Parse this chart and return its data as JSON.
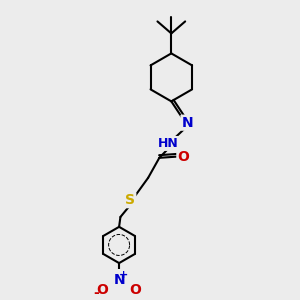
{
  "bg_color": "#ececec",
  "bond_color": "#000000",
  "bond_width": 1.5,
  "atom_colors": {
    "C": "#000000",
    "N": "#0000cc",
    "O": "#cc0000",
    "S": "#ccaa00",
    "H": "#555555"
  },
  "font_size": 9
}
